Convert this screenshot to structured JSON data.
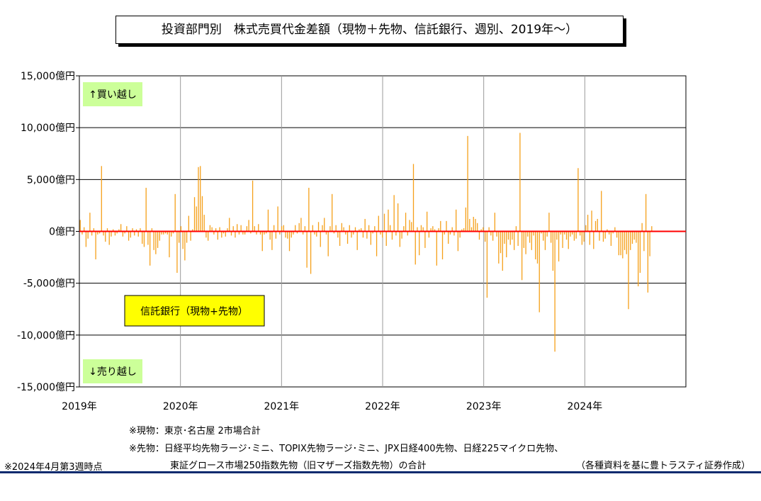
{
  "title": "投資部門別　株式売買代金差額（現物＋先物、信託銀行、週別、2019年～）",
  "labels": {
    "buy": "↑買い越し",
    "sell": "↓売り越し",
    "series_box": "信託銀行（現物+先物）"
  },
  "notes": {
    "genbutsu": "※現物：東京･名古屋 2市場合計",
    "sakimono1": "※先物：日経平均先物ラージ･ミニ、TOPIX先物ラージ･ミニ、JPX日経400先物、日経225マイクロ先物、",
    "sakimono2": "東証グロース市場250指数先物（旧マザーズ指数先物）の合計",
    "asof": "※2024年4月第3週時点",
    "source": "（各種資料を基に豊トラスティ証券作成）"
  },
  "colors": {
    "bar": "#f5a01a",
    "zero_line": "#ff0000",
    "buy_bg": "#ccff99",
    "series_bg": "#ffff00",
    "grid": "#000000",
    "bottom_line": "#0a2a6e"
  },
  "chart_data": {
    "type": "bar",
    "title": "投資部門別　株式売買代金差額（現物＋先物、信託銀行、週別、2019年～）",
    "ylabel": "",
    "unit": "億円",
    "ylim": [
      -15000,
      15000
    ],
    "yticks": [
      15000,
      10000,
      5000,
      0,
      -5000,
      -10000,
      -15000
    ],
    "ytick_labels": [
      "15,000億円",
      "10,000億円",
      "5,000億円",
      "0億円",
      "-5,000億円",
      "-10,000億円",
      "-15,000億円"
    ],
    "xlim": [
      2019.0,
      2025.0
    ],
    "xticks": [
      2019,
      2020,
      2021,
      2022,
      2023,
      2024
    ],
    "xtick_labels": [
      "2019年",
      "2020年",
      "2021年",
      "2022年",
      "2023年",
      "2024年"
    ],
    "grid": true,
    "series": [
      {
        "name": "信託銀行（現物+先物）",
        "x_start": "2019-01-04",
        "frequency": "weekly",
        "values": [
          1100,
          -300,
          400,
          -1500,
          -700,
          1800,
          -400,
          300,
          -2700,
          -300,
          -200,
          6300,
          -400,
          -1000,
          300,
          -1300,
          -500,
          200,
          -400,
          -200,
          200,
          700,
          -500,
          -200,
          500,
          -900,
          -600,
          300,
          -400,
          200,
          -500,
          300,
          -1200,
          -1500,
          4200,
          -1300,
          -3300,
          300,
          -1800,
          -2200,
          -1600,
          -900,
          -300,
          -300,
          -200,
          -300,
          -2500,
          -500,
          -200,
          3600,
          -4000,
          -1100,
          500,
          -1700,
          -2800,
          -1100,
          1500,
          -900,
          200,
          3300,
          2400,
          6200,
          6300,
          3400,
          1600,
          -600,
          -900,
          600,
          400,
          -300,
          300,
          -800,
          400,
          -600,
          -200,
          -500,
          300,
          1300,
          -400,
          500,
          -600,
          700,
          -300,
          600,
          -300,
          -300,
          500,
          1100,
          -200,
          4900,
          500,
          -300,
          700,
          -300,
          -1900,
          -300,
          -200,
          2100,
          -800,
          -1800,
          600,
          -700,
          2400,
          -300,
          500,
          600,
          -600,
          -700,
          -1900,
          -600,
          -300,
          600,
          -200,
          800,
          1300,
          -300,
          500,
          -3500,
          4200,
          -4100,
          600,
          -300,
          -500,
          900,
          -1500,
          600,
          1300,
          -300,
          -2400,
          500,
          3600,
          -200,
          600,
          -600,
          -1400,
          800,
          400,
          -300,
          -1200,
          600,
          -600,
          -300,
          400,
          -1800,
          200,
          300,
          -600,
          1200,
          -700,
          600,
          -1300,
          -200,
          500,
          -2400,
          1500,
          -300,
          -600,
          1700,
          -1400,
          2100,
          600,
          -800,
          3500,
          -400,
          2700,
          -1500,
          -700,
          500,
          1800,
          -400,
          1100,
          900,
          6500,
          -3200,
          400,
          -2300,
          600,
          400,
          -1600,
          1900,
          -600,
          300,
          500,
          200,
          -3300,
          300,
          1000,
          -2700,
          -300,
          1000,
          -1200,
          -300,
          400,
          -400,
          2100,
          -1900,
          -600,
          200,
          300,
          2300,
          9200,
          1200,
          400,
          1400,
          1200,
          800,
          -800,
          200,
          400,
          -1000,
          -6400,
          400,
          -400,
          -900,
          1800,
          -500,
          -3100,
          -2100,
          -3800,
          -1200,
          -2500,
          -800,
          -1300,
          -800,
          -1800,
          500,
          -1400,
          9500,
          -4700,
          -1600,
          -2200,
          -500,
          -1100,
          -1800,
          -400,
          -2700,
          -3100,
          -7800,
          -200,
          -900,
          -1800,
          -500,
          1800,
          -1100,
          -3800,
          -11600,
          -800,
          -2900,
          -300,
          -1600,
          -300,
          -800,
          -1700,
          -500,
          -300,
          -900,
          -700,
          6100,
          -400,
          -1300,
          -1000,
          600,
          1600,
          -1300,
          2000,
          -1700,
          1000,
          1200,
          -900,
          3900,
          -1000,
          -700,
          200,
          -300,
          -1400,
          -200,
          400,
          -600,
          -2300,
          -2300,
          -2600,
          -1800,
          -2200,
          -7500,
          -1800,
          -1200,
          -800,
          -1100,
          -5300,
          -4000,
          800,
          -1900,
          3600,
          -5900,
          -2400,
          500
        ]
      }
    ]
  }
}
